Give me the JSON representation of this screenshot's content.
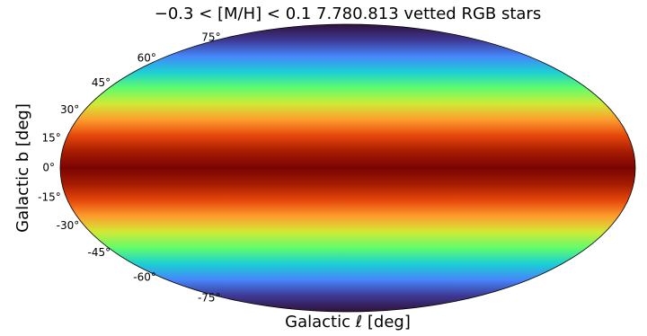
{
  "chart_data": {
    "type": "mollweide",
    "title": "−0.3 < [M/H] < 0.1    7.780.813 vetted RGB stars",
    "xlabel": "Galactic ℓ [deg]",
    "ylabel": "Galactic b [deg]",
    "ylim": [
      -90,
      90
    ],
    "yticks": [
      {
        "value": 75,
        "label": "75°"
      },
      {
        "value": 60,
        "label": "60°"
      },
      {
        "value": 45,
        "label": "45°"
      },
      {
        "value": 30,
        "label": "30°"
      },
      {
        "value": 15,
        "label": "15°"
      },
      {
        "value": 0,
        "label": "0°"
      },
      {
        "value": -15,
        "label": "-15°"
      },
      {
        "value": -30,
        "label": "-30°"
      },
      {
        "value": -45,
        "label": "-45°"
      },
      {
        "value": -60,
        "label": "-60°"
      },
      {
        "value": -75,
        "label": "-75°"
      }
    ],
    "colormap": "turbo"
  }
}
